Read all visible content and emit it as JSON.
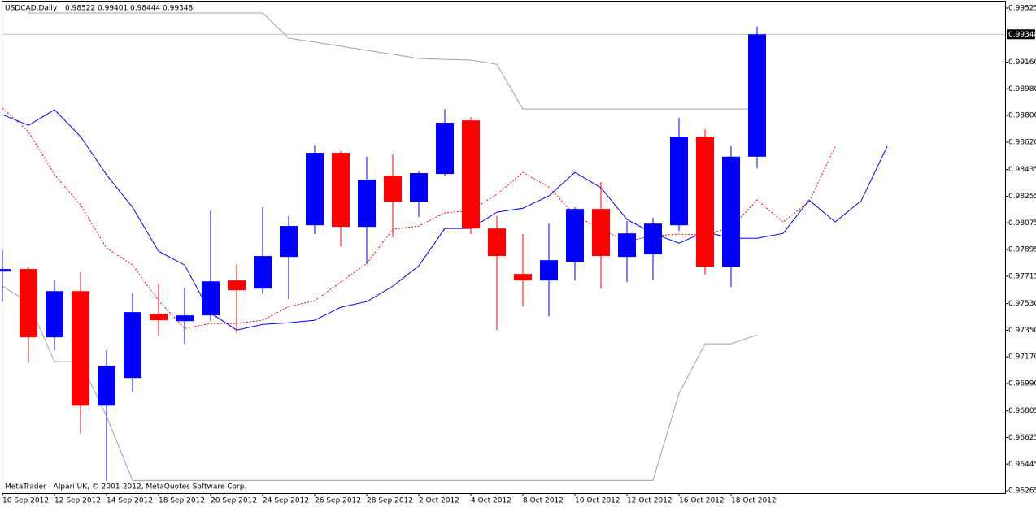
{
  "chart_data": {
    "type": "candlestick",
    "title": "USDCAD,Daily",
    "annotation": "MetaTrader - Alpari UK, © 2001-2012, MetaQuotes Software Corp.",
    "categories": [
      "10 Sep 2012",
      null,
      "12 Sep 2012",
      null,
      "14 Sep 2012",
      null,
      "18 Sep 2012",
      null,
      "20 Sep 2012",
      null,
      "24 Sep 2012",
      null,
      "26 Sep 2012",
      null,
      "28 Sep 2012",
      null,
      "2 Oct 2012",
      null,
      "4 Oct 2012",
      null,
      "8 Oct 2012",
      null,
      "10 Oct 2012",
      null,
      "12 Oct 2012",
      null,
      "16 Oct 2012",
      null,
      "18 Oct 2012",
      null,
      null,
      null,
      null,
      null,
      null
    ],
    "open": [
      0.97746,
      0.97763,
      0.97302,
      0.97614,
      0.9684,
      0.97027,
      0.97461,
      0.97411,
      0.9745,
      0.97686,
      0.97631,
      0.97845,
      0.98059,
      0.98548,
      0.98048,
      0.98394,
      0.98218,
      0.98405,
      0.98767,
      0.98037,
      0.9773,
      0.97686,
      0.97812,
      0.98169,
      0.97845,
      0.97862,
      0.98059,
      0.98658,
      0.97779,
      0.98522,
      null,
      null,
      null,
      null,
      null
    ],
    "high": [
      0.97894,
      0.97774,
      0.97691,
      0.97741,
      0.97214,
      0.97603,
      0.97664,
      0.97636,
      0.98158,
      0.97796,
      0.9818,
      0.9812,
      0.98597,
      0.98559,
      0.98522,
      0.98537,
      0.98427,
      0.98844,
      0.98789,
      0.9812,
      0.97999,
      0.9807,
      0.9818,
      0.9835,
      0.98087,
      0.98109,
      0.98784,
      0.98707,
      0.98592,
      0.99401,
      null,
      null,
      null,
      null,
      null
    ],
    "low": [
      0.97543,
      0.97131,
      0.97214,
      0.96654,
      0.9633,
      0.96934,
      0.97313,
      0.97258,
      0.97411,
      0.97329,
      0.97593,
      0.9756,
      0.97999,
      0.97916,
      0.97796,
      0.97977,
      0.98114,
      0.98394,
      0.97999,
      0.97351,
      0.9751,
      0.97444,
      0.97686,
      0.97631,
      0.97675,
      0.97691,
      0.98021,
      0.97724,
      0.97642,
      0.98444,
      null,
      null,
      null,
      null,
      null
    ],
    "close": [
      0.97763,
      0.97302,
      0.97614,
      0.9684,
      0.97109,
      0.97472,
      0.97417,
      0.9745,
      0.9768,
      0.9762,
      0.97851,
      0.98054,
      0.98548,
      0.98048,
      0.98367,
      0.98218,
      0.98411,
      0.98751,
      0.98037,
      0.97851,
      0.97686,
      0.97823,
      0.98169,
      0.97851,
      0.98004,
      0.9807,
      0.98658,
      0.97779,
      0.98522,
      0.99348,
      null,
      null,
      null,
      null,
      null
    ],
    "up_color": "#0000ff",
    "down_color": "#ff0000",
    "series": [
      {
        "color": "#0000ff",
        "style": "solid",
        "values": [
          0.98806,
          0.98734,
          0.98839,
          0.98658,
          0.984,
          0.9818,
          0.97883,
          0.9779,
          0.97466,
          0.97351,
          0.97389,
          0.974,
          0.97417,
          0.97505,
          0.97543,
          0.97647,
          0.97785,
          0.98037,
          0.98037,
          0.98147,
          0.98174,
          0.98257,
          0.98416,
          0.98312,
          0.98098,
          0.98004,
          0.97938,
          0.98015,
          0.97971,
          0.97971,
          0.98004,
          0.98229,
          0.98081,
          0.98224,
          0.98592
        ]
      },
      {
        "color": "#ff0000",
        "style": "dotted",
        "values": [
          0.9885,
          0.98691,
          0.984,
          0.98196,
          0.97905,
          0.9779,
          0.97549,
          0.97362,
          0.97395,
          0.97395,
          0.97417,
          0.9751,
          0.97549,
          0.97675,
          0.97801,
          0.98032,
          0.98054,
          0.98142,
          0.98158,
          0.98268,
          0.98416,
          0.98317,
          0.98125,
          0.98032,
          0.97949,
          0.97988,
          0.97999,
          0.97993,
          0.98043,
          0.98229,
          0.98081,
          0.98218,
          0.98592,
          null,
          null
        ]
      },
      {
        "color": "#a0a0a0",
        "style": "solid",
        "values": [
          null,
          0.99492,
          0.99492,
          0.99492,
          0.99492,
          0.99492,
          0.99492,
          0.99492,
          0.99492,
          0.99492,
          0.99492,
          0.99322,
          0.99295,
          0.99268,
          0.9924,
          0.99213,
          0.99185,
          0.99179,
          0.99174,
          0.99146,
          0.98844,
          0.98844,
          0.98844,
          0.98844,
          0.98844,
          0.98844,
          0.98844,
          0.98844,
          0.98844,
          0.98844,
          null,
          null,
          null,
          null,
          null
        ]
      },
      {
        "color": "#a0a0a0",
        "style": "solid",
        "values": [
          0.97648,
          0.97538,
          0.97137,
          0.97137,
          0.96769,
          0.96335,
          0.96335,
          0.96335,
          0.96335,
          0.96335,
          0.96335,
          0.96335,
          0.96335,
          0.96335,
          0.96335,
          0.96335,
          0.96335,
          0.96335,
          0.96335,
          0.96335,
          0.96335,
          0.96335,
          0.96335,
          0.96335,
          0.96335,
          0.96335,
          0.96923,
          0.97258,
          0.97258,
          0.97318,
          null,
          null,
          null,
          null,
          null
        ]
      }
    ],
    "ylim": [
      0.96249,
      0.99569
    ],
    "yticks": [
      0.99525,
      {
        "value": 0.9916,
        "label": "0.99160"
      },
      {
        "value": 0.9898,
        "label": "0.98980"
      },
      {
        "value": 0.988,
        "label": "0.98800"
      },
      {
        "value": 0.9862,
        "label": "0.98620"
      },
      0.98435,
      {
        "value": 0.98255,
        "label": "0.98255"
      },
      {
        "value": 0.98075,
        "label": "0.98075"
      },
      {
        "value": 0.97895,
        "label": "0.97895"
      },
      {
        "value": 0.97715,
        "label": "0.97715"
      },
      {
        "value": 0.9753,
        "label": "0.97530"
      },
      {
        "value": 0.9735,
        "label": "0.97350"
      },
      {
        "value": 0.9717,
        "label": "0.97170"
      },
      {
        "value": 0.9699,
        "label": "0.96990"
      },
      0.96805,
      0.96625,
      0.96445,
      0.96265
    ],
    "grid": false
  }
}
